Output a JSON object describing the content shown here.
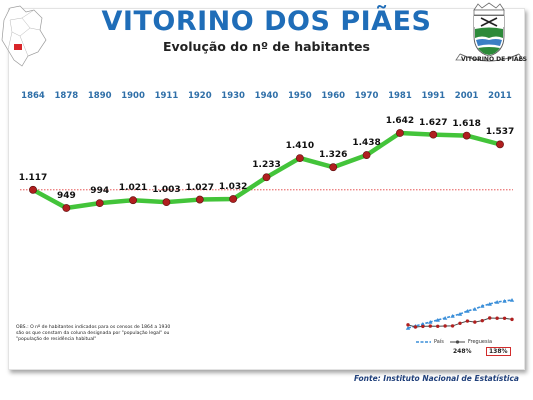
{
  "header": {
    "title": "VITORINO DOS PIÃES",
    "subtitle": "Evolução do nº de habitantes"
  },
  "emblem": {
    "label": "VITORINO DE PIÃES"
  },
  "chart_data": {
    "type": "line",
    "categories": [
      "1864",
      "1878",
      "1890",
      "1900",
      "1911",
      "1920",
      "1930",
      "1940",
      "1950",
      "1960",
      "1970",
      "1981",
      "1991",
      "2001",
      "2011"
    ],
    "series": [
      {
        "values": [
          1117,
          949,
          994,
          1021,
          1003,
          1027,
          1032,
          1233,
          1410,
          1326,
          1438,
          1642,
          1627,
          1618,
          1537
        ]
      }
    ],
    "data_labels": [
      "1.117",
      "949",
      "994",
      "1.021",
      "1.003",
      "1.027",
      "1.032",
      "1.233",
      "1.410",
      "1.326",
      "1.438",
      "1.642",
      "1.627",
      "1.618",
      "1.537"
    ],
    "reference_line": 1117,
    "ylim": [
      500,
      1700
    ],
    "grid": false,
    "line_color": "#43c43a",
    "marker_color": "#b01f1f",
    "reference_color": "#e23b3b"
  },
  "inset": {
    "legend": [
      {
        "name": "País",
        "color": "#3b8fd9"
      },
      {
        "name": "Freguesia",
        "color": "#4a4a4a"
      }
    ],
    "pais_pct": "248%",
    "freguesia_pct": "138%"
  },
  "note": "OBS.: O nº de habitantes indicados para os censos de 1864 a 1930 são os que constam da coluna designada por \"população legal\" ou \"população de residência habitual\"",
  "source": "Fonte: Instituto Nacional de Estatística"
}
